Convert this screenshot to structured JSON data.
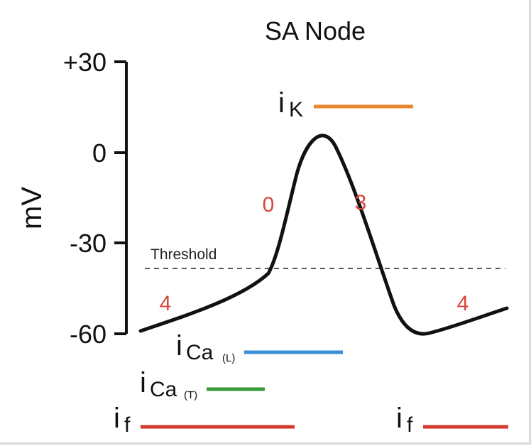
{
  "title": "SA Node",
  "y_axis": {
    "label": "mV",
    "ticks": [
      {
        "value": 30,
        "label": "+30"
      },
      {
        "value": 0,
        "label": "0"
      },
      {
        "value": -30,
        "label": "-30"
      },
      {
        "value": -60,
        "label": "-60"
      }
    ]
  },
  "threshold": {
    "label": "Threshold",
    "value": -38
  },
  "phases": [
    {
      "label": "4",
      "color": "#d9453a"
    },
    {
      "label": "0",
      "color": "#d9453a"
    },
    {
      "label": "3",
      "color": "#d9453a"
    },
    {
      "label": "4",
      "color": "#d9453a"
    }
  ],
  "currents": {
    "ik": {
      "main": "i",
      "sub": "K",
      "color": "#e8892f"
    },
    "ica_l": {
      "main": "i",
      "sub": "Ca",
      "subsub": "(L)",
      "color": "#3b8fd6"
    },
    "ica_t": {
      "main": "i",
      "sub": "Ca",
      "subsub": "(T)",
      "color": "#3a9a3a"
    },
    "if_left": {
      "main": "i",
      "sub": "f",
      "color": "#d23a30"
    },
    "if_right": {
      "main": "i",
      "sub": "f",
      "color": "#d23a30"
    }
  }
}
